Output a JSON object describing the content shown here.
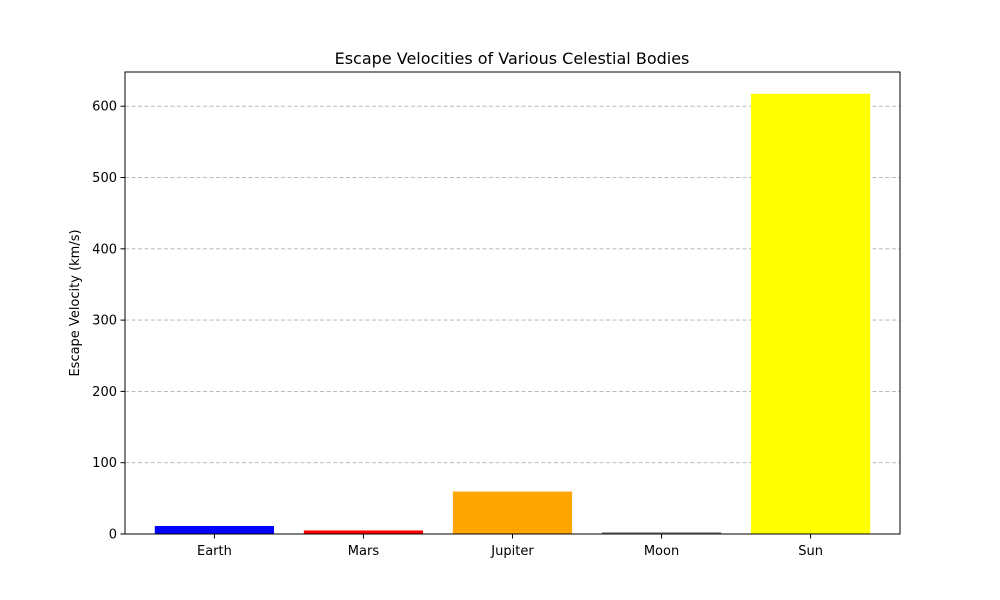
{
  "chart_data": {
    "type": "bar",
    "title": "Escape Velocities of Various Celestial Bodies",
    "xlabel": "",
    "ylabel": "Escape Velocity (km/s)",
    "categories": [
      "Earth",
      "Mars",
      "Jupiter",
      "Moon",
      "Sun"
    ],
    "values": [
      11.2,
      5.0,
      59.5,
      2.4,
      617.5
    ],
    "colors": [
      "#0000ff",
      "#ff0000",
      "#ffa500",
      "#808080",
      "#ffff00"
    ],
    "ylim": [
      0,
      648
    ],
    "yticks": [
      0,
      100,
      200,
      300,
      400,
      500,
      600
    ],
    "grid": "y-dashed",
    "legend": "none"
  }
}
